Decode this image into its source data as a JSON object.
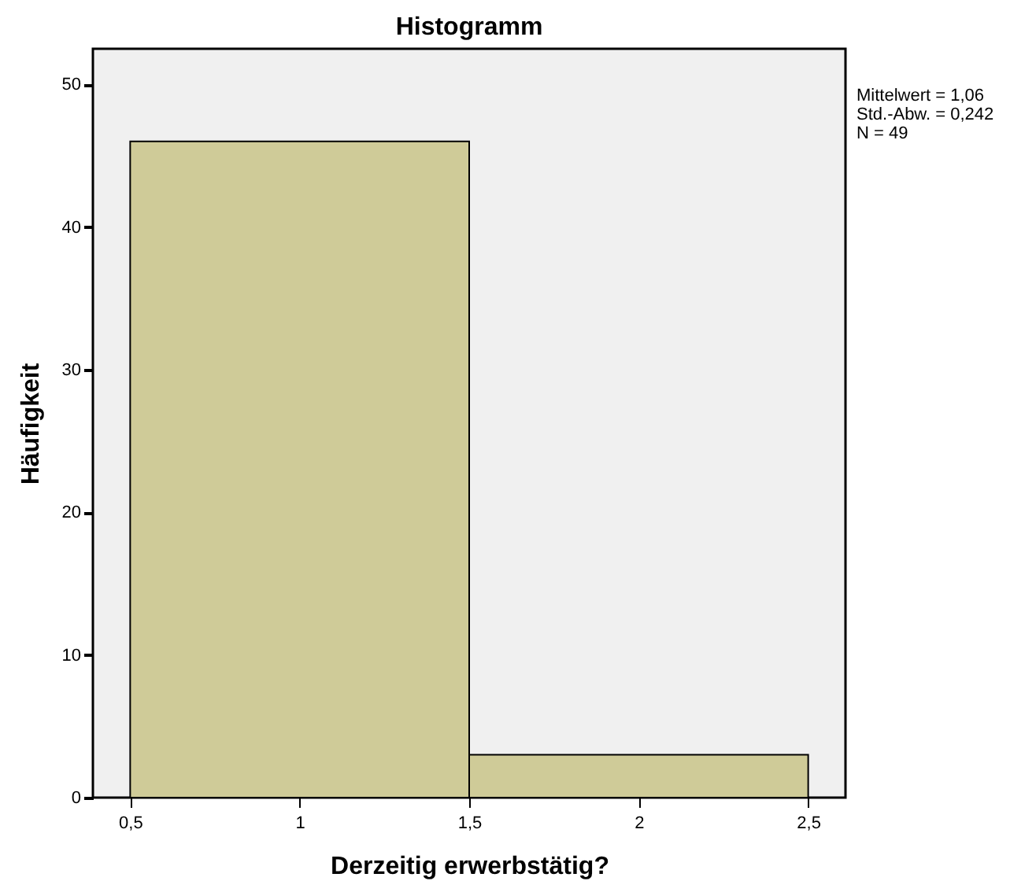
{
  "chart_data": {
    "type": "histogram",
    "title": "Histogramm",
    "xlabel": "Derzeitig erwerbstätig?",
    "ylabel": "Häufigkeit",
    "bins": [
      0.5,
      1.5,
      2.5
    ],
    "values": [
      46,
      3
    ],
    "color": "#cfcb98",
    "xlim": [
      0.39,
      2.61
    ],
    "xticks": [
      {
        "value": 0.5,
        "label": "0,5"
      },
      1,
      {
        "value": 1.5,
        "label": "1,5"
      },
      2,
      {
        "value": 2.5,
        "label": "2,5"
      }
    ],
    "ylim": [
      0,
      52.5
    ],
    "yticks": [
      0,
      10,
      20,
      30,
      40,
      50
    ],
    "annotations": [
      "Mittelwert = 1,06",
      "Std.-Abw. = 0,242",
      "N = 49"
    ],
    "grid": false
  }
}
